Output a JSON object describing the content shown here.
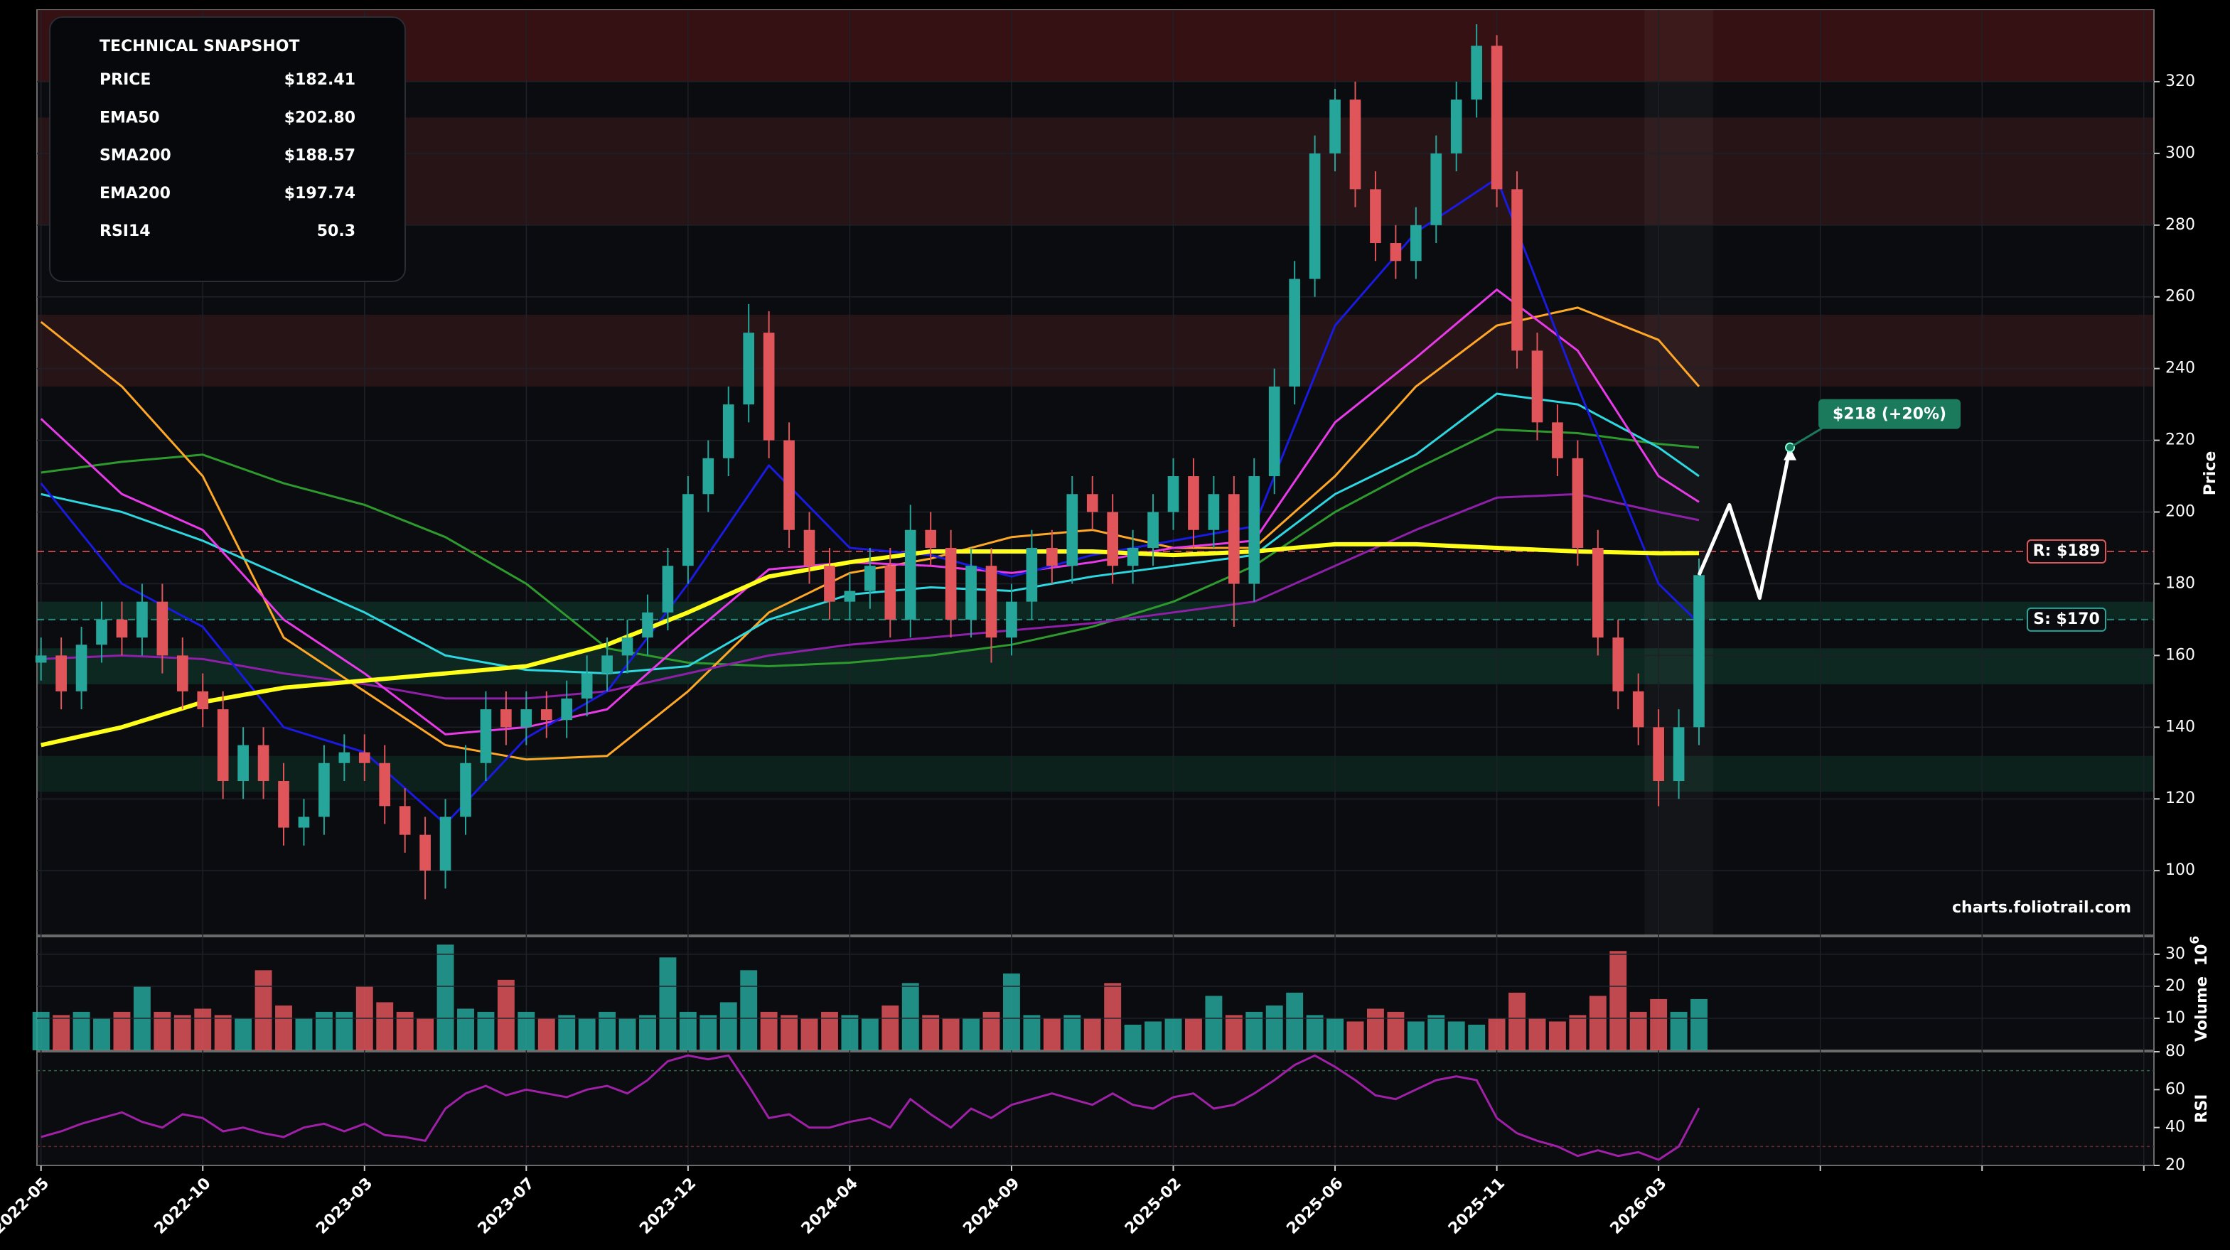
{
  "chart_data": {
    "type": "candlestick",
    "watermark": "charts.foliotrail.com",
    "ylabel": "Price",
    "ylim": [
      82,
      340
    ],
    "yticks": [
      100,
      120,
      140,
      160,
      180,
      200,
      220,
      240,
      260,
      280,
      300,
      320
    ],
    "xlim": [
      -0.2,
      104.5
    ],
    "xticks": [
      {
        "value": 0,
        "label": "2022-05"
      },
      {
        "value": 8,
        "label": "2022-10"
      },
      {
        "value": 16,
        "label": "2023-03"
      },
      {
        "value": 24,
        "label": "2023-07"
      },
      {
        "value": 32,
        "label": "2023-12"
      },
      {
        "value": 40,
        "label": "2024-04"
      },
      {
        "value": 48,
        "label": "2024-09"
      },
      {
        "value": 56,
        "label": "2025-02"
      },
      {
        "value": 64,
        "label": "2025-06"
      },
      {
        "value": 72,
        "label": "2025-11"
      },
      {
        "value": 80,
        "label": "2026-03"
      },
      {
        "value": 88,
        "label": null
      },
      {
        "value": 96,
        "label": null
      },
      {
        "value": 104,
        "label": null
      }
    ],
    "grid": true,
    "up_color": "#26a69a",
    "down_color": "#e0555a",
    "candles": {
      "open": [
        158,
        160,
        150,
        163,
        170,
        165,
        175,
        160,
        150,
        145,
        125,
        135,
        125,
        112,
        115,
        130,
        133,
        130,
        118,
        110,
        100,
        115,
        130,
        145,
        140,
        145,
        142,
        148,
        155,
        160,
        165,
        172,
        185,
        205,
        215,
        230,
        250,
        220,
        195,
        185,
        175,
        178,
        185,
        170,
        195,
        190,
        170,
        185,
        165,
        175,
        190,
        185,
        205,
        200,
        185,
        190,
        200,
        210,
        195,
        205,
        180,
        210,
        235,
        265,
        300,
        315,
        290,
        275,
        270,
        280,
        300,
        315,
        330,
        290,
        245,
        225,
        215,
        190,
        165,
        150,
        140,
        125,
        140
      ],
      "high": [
        165,
        165,
        168,
        175,
        175,
        180,
        180,
        165,
        155,
        150,
        140,
        140,
        130,
        120,
        135,
        138,
        138,
        135,
        123,
        115,
        120,
        135,
        150,
        150,
        150,
        150,
        153,
        160,
        165,
        170,
        177,
        190,
        210,
        220,
        235,
        258,
        256,
        225,
        200,
        190,
        183,
        190,
        190,
        202,
        200,
        195,
        190,
        190,
        180,
        195,
        195,
        210,
        210,
        205,
        195,
        205,
        215,
        215,
        210,
        210,
        215,
        240,
        270,
        305,
        318,
        320,
        295,
        280,
        285,
        305,
        320,
        336,
        333,
        295,
        250,
        230,
        220,
        195,
        170,
        155,
        145,
        145,
        187
      ],
      "low": [
        153,
        145,
        145,
        158,
        160,
        160,
        155,
        145,
        140,
        120,
        120,
        120,
        107,
        107,
        110,
        125,
        125,
        113,
        105,
        92,
        95,
        110,
        125,
        135,
        135,
        137,
        137,
        143,
        150,
        155,
        160,
        167,
        180,
        200,
        210,
        225,
        215,
        190,
        180,
        170,
        170,
        173,
        165,
        165,
        185,
        165,
        165,
        158,
        160,
        170,
        180,
        180,
        195,
        180,
        180,
        185,
        195,
        190,
        190,
        168,
        175,
        205,
        230,
        260,
        295,
        285,
        270,
        265,
        265,
        275,
        295,
        310,
        285,
        240,
        220,
        210,
        185,
        160,
        145,
        135,
        118,
        120,
        135
      ],
      "close": [
        160,
        150,
        163,
        170,
        165,
        175,
        160,
        150,
        145,
        125,
        135,
        125,
        112,
        115,
        130,
        133,
        130,
        118,
        110,
        100,
        115,
        130,
        145,
        140,
        145,
        142,
        148,
        155,
        160,
        165,
        172,
        185,
        205,
        215,
        230,
        250,
        220,
        195,
        185,
        175,
        178,
        185,
        170,
        195,
        190,
        170,
        185,
        165,
        175,
        190,
        185,
        205,
        200,
        185,
        190,
        200,
        210,
        195,
        205,
        180,
        210,
        235,
        265,
        300,
        315,
        290,
        275,
        270,
        280,
        300,
        315,
        330,
        290,
        245,
        225,
        215,
        190,
        165,
        150,
        140,
        125,
        140,
        182.41
      ]
    },
    "overlay_x": [
      0,
      4,
      8,
      12,
      16,
      20,
      24,
      28,
      32,
      36,
      40,
      44,
      48,
      52,
      56,
      60,
      64,
      68,
      72,
      76,
      80,
      82
    ],
    "overlays": [
      {
        "color": "#2e9a2e",
        "values": [
          211,
          214,
          216,
          208,
          202,
          193,
          180,
          162,
          158,
          157,
          158,
          160,
          163,
          168,
          175,
          185,
          200,
          212,
          223,
          222,
          219,
          218
        ]
      },
      {
        "color": "#ffa726",
        "values": [
          253,
          235,
          210,
          165,
          150,
          135,
          131,
          132,
          150,
          172,
          183,
          187,
          193,
          195,
          190,
          190,
          210,
          235,
          252,
          257,
          248,
          235
        ]
      },
      {
        "color": "#2dd8e0",
        "values": [
          205,
          200,
          192,
          182,
          172,
          160,
          156,
          155,
          157,
          170,
          177,
          179,
          178,
          182,
          185,
          188,
          205,
          216,
          233,
          230,
          218,
          210
        ]
      },
      {
        "color": "#8e1fa8",
        "values": [
          159,
          160,
          159,
          155,
          152,
          148,
          148,
          150,
          155,
          160,
          163,
          165,
          167,
          169,
          172,
          175,
          185,
          195,
          204,
          205,
          200,
          197.74
        ]
      },
      {
        "color": "#e83ae8",
        "values": [
          226,
          205,
          195,
          170,
          155,
          138,
          140,
          145,
          165,
          184,
          186,
          185,
          183,
          186,
          190,
          192,
          225,
          243,
          262,
          245,
          210,
          202.8
        ]
      },
      {
        "color": "#1a1ae0",
        "values": [
          208,
          180,
          168,
          140,
          133,
          113,
          137,
          150,
          180,
          213,
          190,
          188,
          182,
          188,
          192,
          196,
          252,
          278,
          293,
          235,
          180,
          169
        ]
      },
      {
        "color": "#ffff1a",
        "values": [
          135,
          140,
          147,
          151,
          153,
          155,
          157,
          163,
          172,
          182,
          186,
          189,
          189,
          189,
          188,
          189,
          191,
          191,
          190,
          189,
          188.5,
          188.57
        ]
      }
    ],
    "zones": [
      {
        "from": 320,
        "to": 340,
        "color": "#3a1214"
      },
      {
        "from": 280,
        "to": 310,
        "color": "#2a1518"
      },
      {
        "from": 235,
        "to": 255,
        "color": "#2a1518"
      },
      {
        "from": 170,
        "to": 175,
        "color": "#0d2a24"
      },
      {
        "from": 152,
        "to": 162,
        "color": "#0d2a24"
      },
      {
        "from": 122,
        "to": 132,
        "color": "#0c221e"
      }
    ],
    "levels": [
      {
        "label": "R: $189",
        "value": 189,
        "color": "#e0555a"
      },
      {
        "label": "S: $170",
        "value": 170,
        "color": "#26a69a"
      }
    ],
    "projection": {
      "x": [
        82,
        83.5,
        85,
        86.5
      ],
      "values": [
        182.41,
        202,
        176,
        218
      ],
      "label": "$218 (+20%)",
      "color": "#1b7a5c"
    },
    "volume": {
      "ylabel": "Volume",
      "scale_base": "10",
      "scale_exp": "6",
      "ylim": [
        0,
        35.5
      ],
      "yticks": [
        10,
        20,
        30
      ],
      "values": [
        12,
        11,
        12,
        10,
        12,
        20,
        12,
        11,
        13,
        11,
        10,
        25,
        14,
        10,
        12,
        12,
        20,
        15,
        12,
        10,
        33,
        13,
        12,
        22,
        12,
        10,
        11,
        10,
        12,
        10,
        11,
        29,
        12,
        11,
        15,
        25,
        12,
        11,
        10,
        12,
        11,
        10,
        14,
        21,
        11,
        10,
        10,
        12,
        24,
        11,
        10,
        11,
        10,
        21,
        8,
        9,
        10,
        10,
        17,
        11,
        12,
        14,
        18,
        11,
        10,
        9,
        13,
        12,
        9,
        11,
        9,
        8,
        10,
        18,
        10,
        9,
        11,
        17,
        31,
        12,
        16,
        12,
        16
      ]
    },
    "rsi": {
      "ylabel": "RSI",
      "ylim": [
        20,
        80
      ],
      "yticks": [
        20,
        40,
        60,
        80
      ],
      "overbought": 70,
      "oversold": 30,
      "color": "#a020a8",
      "values": [
        35,
        38,
        42,
        45,
        48,
        43,
        40,
        47,
        45,
        38,
        40,
        37,
        35,
        40,
        42,
        38,
        42,
        36,
        35,
        33,
        50,
        58,
        62,
        57,
        60,
        58,
        56,
        60,
        62,
        58,
        65,
        75,
        78,
        76,
        78,
        62,
        45,
        47,
        40,
        40,
        43,
        45,
        40,
        55,
        47,
        40,
        50,
        45,
        52,
        55,
        58,
        55,
        52,
        58,
        52,
        50,
        56,
        58,
        50,
        52,
        58,
        65,
        73,
        78,
        72,
        65,
        57,
        55,
        60,
        65,
        67,
        65,
        45,
        37,
        33,
        30,
        25,
        28,
        25,
        27,
        23,
        30,
        50.3
      ]
    }
  },
  "snapshot": {
    "title": "TECHNICAL SNAPSHOT",
    "rows": [
      {
        "label": "PRICE",
        "value": "$182.41",
        "color": "#ffffff"
      },
      {
        "label": "EMA50",
        "value": "$202.80",
        "color": "#e83ae8"
      },
      {
        "label": "SMA200",
        "value": "$188.57",
        "color": "#ffff1a"
      },
      {
        "label": "EMA200",
        "value": "$197.74",
        "color": "#a020a8"
      },
      {
        "label": "RSI14",
        "value": "50.3",
        "color": "#a020a8"
      }
    ]
  }
}
